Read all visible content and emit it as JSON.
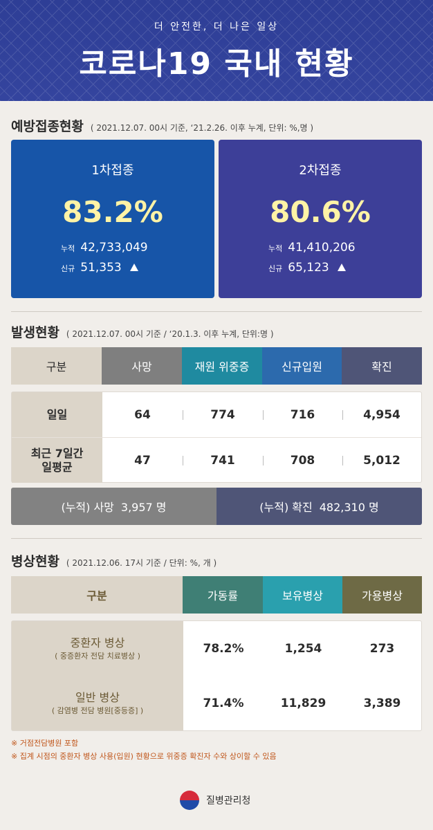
{
  "header": {
    "subtitle": "더 안전한, 더 나은 일상",
    "title": "코로나19 국내 현황"
  },
  "vaccination": {
    "title": "예방접종현황",
    "note": "( 2021.12.07. 00시 기준, ‘21.2.26. 이후 누계, 단위: %,명 )",
    "cards": [
      {
        "label": "1차접종",
        "percent": "83.2%",
        "cum_label": "누적",
        "cum_value": "42,733,049",
        "new_label": "신규",
        "new_value": "51,353"
      },
      {
        "label": "2차접종",
        "percent": "80.6%",
        "cum_label": "누적",
        "cum_value": "41,410,206",
        "new_label": "신규",
        "new_value": "65,123"
      }
    ]
  },
  "occurrence": {
    "title": "발생현황",
    "note": "( 2021.12.07. 00시 기준 / ‘20.1.3. 이후 누계, 단위:명 )",
    "headers": [
      "구분",
      "사망",
      "재원 위중증",
      "신규입원",
      "확진"
    ],
    "header_colors": [
      "#dcd5c9",
      "#7f7f7f",
      "#1f8aa0",
      "#2c6aad",
      "#4f5577"
    ],
    "rows": [
      {
        "label": "일일",
        "values": [
          "64",
          "774",
          "716",
          "4,954"
        ]
      },
      {
        "label": "최근 7일간\n일평균",
        "label_line1": "최근 7일간",
        "label_line2": "일평균",
        "values": [
          "47",
          "741",
          "708",
          "5,012"
        ]
      }
    ],
    "cumulative": {
      "death_label": "(누적) 사망",
      "death_value": "3,957 명",
      "confirmed_label": "(누적) 확진",
      "confirmed_value": "482,310 명"
    }
  },
  "beds": {
    "title": "병상현황",
    "note": "( 2021.12.06. 17시 기준 / 단위: %, 개 )",
    "headers": [
      "구분",
      "가동률",
      "보유병상",
      "가용병상"
    ],
    "header_colors": [
      "#dcd5c9",
      "#3f7f75",
      "#2aa0ae",
      "#6e6a45"
    ],
    "rows": [
      {
        "label": "중환자 병상",
        "sublabel": "( 중증환자 전담 치료병상 )",
        "values": [
          "78.2%",
          "1,254",
          "273"
        ]
      },
      {
        "label": "일반 병상",
        "sublabel": "( 감염병 전담 병원[중등증] )",
        "values": [
          "71.4%",
          "11,829",
          "3,389"
        ]
      }
    ],
    "footnotes": [
      "※ 거점전담병원 포함",
      "※ 집계 시점의 중환자 병상 사용(입원) 현황으로 위중증 확진자 수와 상이할 수 있음"
    ]
  },
  "footer": {
    "agency": "질병관리청"
  }
}
